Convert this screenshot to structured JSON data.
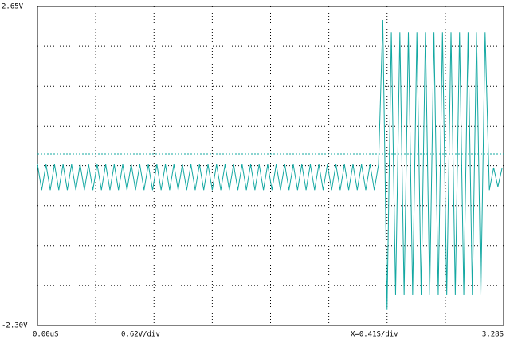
{
  "chart_data": {
    "type": "line",
    "annotations": [
      "0.62V/div",
      "X=0.41S/div"
    ],
    "x": [
      0,
      0.03,
      0.06,
      0.09,
      0.12,
      0.15,
      0.18,
      0.21,
      0.24,
      0.27,
      0.3,
      0.33,
      0.36,
      0.39,
      0.42,
      0.45,
      0.48,
      0.51,
      0.54,
      0.57,
      0.6,
      0.63,
      0.66,
      0.69,
      0.72,
      0.75,
      0.78,
      0.81,
      0.84,
      0.87,
      0.9,
      0.93,
      0.96,
      0.99,
      1.02,
      1.05,
      1.08,
      1.11,
      1.14,
      1.17,
      1.2,
      1.23,
      1.26,
      1.29,
      1.32,
      1.35,
      1.38,
      1.41,
      1.44,
      1.47,
      1.5,
      1.53,
      1.56,
      1.59,
      1.62,
      1.65,
      1.68,
      1.71,
      1.74,
      1.77,
      1.8,
      1.83,
      1.86,
      1.89,
      1.92,
      1.95,
      1.98,
      2.01,
      2.04,
      2.07,
      2.1,
      2.13,
      2.16,
      2.19,
      2.22,
      2.25,
      2.28,
      2.31,
      2.34,
      2.37,
      2.4,
      2.43,
      2.46,
      2.49,
      2.52,
      2.55,
      2.58,
      2.61,
      2.64,
      2.67,
      2.7,
      2.73,
      2.76,
      2.79,
      2.82,
      2.85,
      2.88,
      2.91,
      2.94,
      2.97,
      3.0,
      3.03,
      3.06,
      3.09,
      3.12,
      3.15,
      3.18,
      3.21,
      3.24,
      3.27
    ],
    "series": [
      {
        "color": "#14a8a2",
        "values": [
          0.2,
          -0.2,
          0.2,
          -0.2,
          0.2,
          -0.2,
          0.2,
          -0.2,
          0.2,
          -0.2,
          0.2,
          -0.2,
          0.2,
          -0.2,
          0.2,
          -0.2,
          0.2,
          -0.2,
          0.2,
          -0.2,
          0.2,
          -0.2,
          0.2,
          -0.2,
          0.2,
          -0.2,
          0.2,
          -0.2,
          0.2,
          -0.2,
          0.2,
          -0.2,
          0.2,
          -0.2,
          0.2,
          -0.2,
          0.2,
          -0.2,
          0.2,
          -0.2,
          0.2,
          -0.2,
          0.2,
          -0.2,
          0.2,
          -0.2,
          0.2,
          -0.2,
          0.2,
          -0.2,
          0.2,
          -0.2,
          0.2,
          -0.2,
          0.2,
          -0.2,
          0.2,
          -0.2,
          0.2,
          -0.2,
          0.2,
          -0.2,
          0.2,
          -0.2,
          0.2,
          -0.2,
          0.2,
          -0.2,
          0.2,
          -0.2,
          0.2,
          -0.2,
          0.2,
          -0.2,
          0.2,
          -0.2,
          0.2,
          -0.2,
          0.2,
          -0.2,
          0.2,
          2.44,
          -2.05,
          2.25,
          -1.83,
          2.25,
          -1.83,
          2.25,
          -1.83,
          2.25,
          -1.83,
          2.25,
          -1.83,
          2.25,
          -1.83,
          2.25,
          -1.83,
          2.25,
          -1.83,
          2.25,
          -1.83,
          2.25,
          -1.83,
          2.25,
          -1.83,
          2.25,
          -0.2,
          0.15,
          -0.15,
          0.15
        ]
      }
    ],
    "reference_line": 0.36,
    "xlim": [
      0,
      3.28
    ],
    "ylim": [
      -2.3,
      2.65
    ],
    "xticks": [
      {
        "value": 0,
        "label": "0.00uS"
      },
      {
        "value": 3.28,
        "label": "3.28S"
      }
    ],
    "yticks": [
      {
        "value": 2.65,
        "label": "2.65V"
      },
      {
        "value": -2.3,
        "label": "-2.30V"
      }
    ],
    "xgrid": [
      0.41,
      0.82,
      1.23,
      1.64,
      2.05,
      2.46,
      2.87
    ],
    "ygrid": [
      -1.68,
      -1.06,
      -0.44,
      0.18,
      0.79,
      1.41,
      2.03
    ],
    "grid": true
  }
}
